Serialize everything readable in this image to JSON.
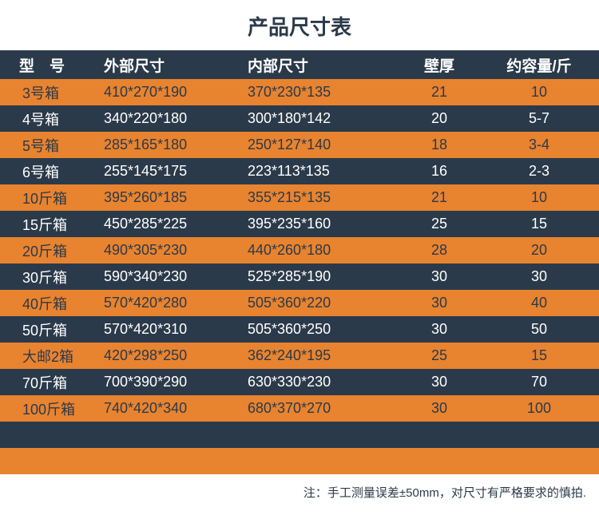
{
  "title": "产品尺寸表",
  "colors": {
    "header_bg": "#2b3a4a",
    "header_text": "#ffffff",
    "row_odd_bg": "#e8832f",
    "row_even_bg": "#2b3a4a",
    "text": "#2b3a4a",
    "text_light": "#ffffff"
  },
  "columns": [
    {
      "label": "型　号"
    },
    {
      "label": "外部尺寸"
    },
    {
      "label": "内部尺寸"
    },
    {
      "label": "壁厚"
    },
    {
      "label": "约容量/斤"
    }
  ],
  "rows": [
    {
      "model": "3号箱",
      "outer": "410*270*190",
      "inner": "370*230*135",
      "wall": "21",
      "cap": "10"
    },
    {
      "model": "4号箱",
      "outer": "340*220*180",
      "inner": "300*180*142",
      "wall": "20",
      "cap": "5-7"
    },
    {
      "model": "5号箱",
      "outer": "285*165*180",
      "inner": "250*127*140",
      "wall": "18",
      "cap": "3-4"
    },
    {
      "model": "6号箱",
      "outer": "255*145*175",
      "inner": "223*113*135",
      "wall": "16",
      "cap": "2-3"
    },
    {
      "model": "10斤箱",
      "outer": "395*260*185",
      "inner": "355*215*135",
      "wall": "21",
      "cap": "10"
    },
    {
      "model": "15斤箱",
      "outer": "450*285*225",
      "inner": "395*235*160",
      "wall": "25",
      "cap": "15"
    },
    {
      "model": "20斤箱",
      "outer": "490*305*230",
      "inner": "440*260*180",
      "wall": "28",
      "cap": "20"
    },
    {
      "model": "30斤箱",
      "outer": "590*340*230",
      "inner": "525*285*190",
      "wall": "30",
      "cap": "30"
    },
    {
      "model": "40斤箱",
      "outer": "570*420*280",
      "inner": "505*360*220",
      "wall": "30",
      "cap": "40"
    },
    {
      "model": "50斤箱",
      "outer": "570*420*310",
      "inner": "505*360*250",
      "wall": "30",
      "cap": "50"
    },
    {
      "model": "大邮2箱",
      "outer": "420*298*250",
      "inner": "362*240*195",
      "wall": "25",
      "cap": "15"
    },
    {
      "model": "70斤箱",
      "outer": "700*390*290",
      "inner": "630*330*230",
      "wall": "30",
      "cap": "70"
    },
    {
      "model": "100斤箱",
      "outer": "740*420*340",
      "inner": "680*370*270",
      "wall": "30",
      "cap": "100"
    },
    {
      "model": "",
      "outer": "",
      "inner": "",
      "wall": "",
      "cap": ""
    },
    {
      "model": "",
      "outer": "",
      "inner": "",
      "wall": "",
      "cap": ""
    }
  ],
  "footnote": "注：手工测量误差±50mm，对尺寸有严格要求的慎拍."
}
